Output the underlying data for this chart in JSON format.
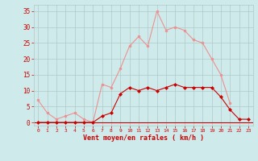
{
  "x": [
    0,
    1,
    2,
    3,
    4,
    5,
    6,
    7,
    8,
    9,
    10,
    11,
    12,
    13,
    14,
    15,
    16,
    17,
    18,
    19,
    20,
    21,
    22,
    23
  ],
  "wind_avg": [
    0,
    0,
    0,
    0,
    0,
    0,
    0,
    2,
    3,
    9,
    11,
    10,
    11,
    10,
    11,
    12,
    11,
    11,
    11,
    11,
    8,
    4,
    1,
    1
  ],
  "wind_gust": [
    7,
    3,
    1,
    2,
    3,
    1,
    0,
    12,
    11,
    17,
    24,
    27,
    24,
    35,
    29,
    30,
    29,
    26,
    25,
    20,
    15,
    6,
    null,
    null
  ],
  "bg_color": "#ceeaea",
  "grid_color": "#b0c8c8",
  "line_color_avg": "#cc0000",
  "line_color_gust": "#ee9090",
  "xlabel": "Vent moyen/en rafales ( km/h )",
  "xlabel_color": "#cc0000",
  "tick_color": "#cc0000",
  "ylim": [
    -1,
    37
  ],
  "yticks": [
    0,
    5,
    10,
    15,
    20,
    25,
    30,
    35
  ],
  "xlim": [
    -0.5,
    23.5
  ]
}
